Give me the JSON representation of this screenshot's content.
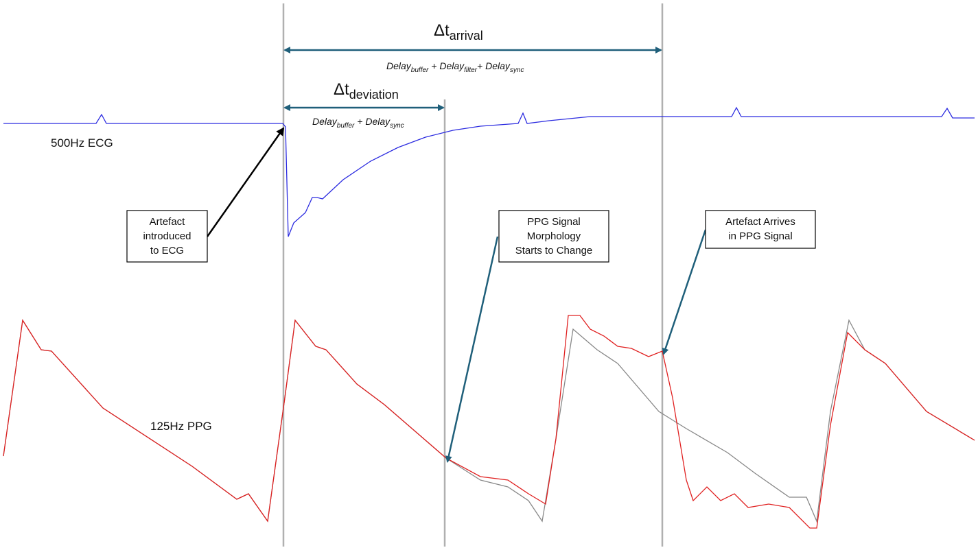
{
  "annotations": {
    "arrival": {
      "symbol": "Δt",
      "subscript": "arrival",
      "formula": [
        {
          "base": "Delay",
          "sub": "buffer"
        },
        {
          "base": " + Delay",
          "sub": "filter"
        },
        {
          "base": "+ Delay",
          "sub": "sync"
        }
      ]
    },
    "deviation": {
      "symbol": "Δt",
      "subscript": "deviation",
      "formula": [
        {
          "base": "Delay",
          "sub": "buffer"
        },
        {
          "base": " + Delay",
          "sub": "sync"
        }
      ]
    }
  },
  "signals": {
    "ecg": "500Hz ECG",
    "ppg": "125Hz PPG"
  },
  "boxes": [
    {
      "lines": [
        "Artefact",
        "introduced",
        "to ECG"
      ]
    },
    {
      "lines": [
        "PPG Signal",
        "Morphology",
        "Starts to Change"
      ]
    },
    {
      "lines": [
        "Artefact Arrives",
        "in PPG Signal"
      ]
    }
  ]
}
